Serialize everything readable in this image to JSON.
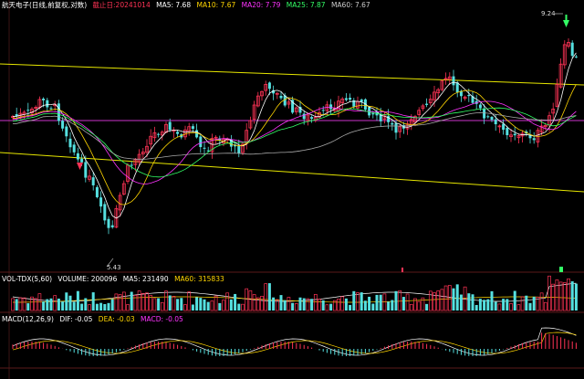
{
  "main_header": {
    "name": "航天电子(日线,前复权,对数)",
    "date": "截止日:20241014",
    "ma5": "MA5: 7.68",
    "ma10": "MA10: 7.67",
    "ma20": "MA20: 7.79",
    "ma25": "MA25: 7.87",
    "ma60": "MA60: 7.67"
  },
  "vol_header": {
    "name": "VOL-TDX(5,60)",
    "volume": "VOLUME: 200096",
    "ma5": "MA5: 231490",
    "ma60": "MA60: 315833"
  },
  "macd_header": {
    "name": "MACD(12,26,9)",
    "dif": "DIF: -0.05",
    "dea": "DEA: -0.03",
    "macd": "MACD: -0.05"
  },
  "annotations": {
    "high": "9.24",
    "low": "5.43"
  },
  "colors": {
    "up": "#ff3355",
    "down": "#55e0e0",
    "ma5": "#ffffff",
    "ma10": "#ffd500",
    "ma20": "#ff33ff",
    "ma25": "#33ff66",
    "ma60": "#aaaaaa",
    "channel": "#e6e600",
    "horizontal": "#cc33cc"
  }
}
